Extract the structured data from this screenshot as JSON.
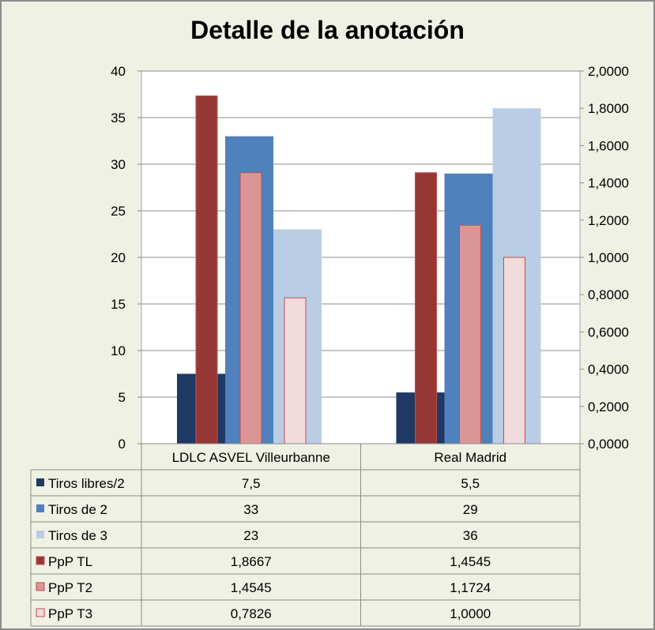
{
  "chart_data": {
    "type": "bar",
    "title": "Detalle de la anotación",
    "categories": [
      "LDLC ASVEL Villeurbanne",
      "Real Madrid"
    ],
    "y_left": {
      "min": 0,
      "max": 40,
      "ticks": [
        "0",
        "5",
        "10",
        "15",
        "20",
        "25",
        "30",
        "35",
        "40"
      ]
    },
    "y_right": {
      "min": 0,
      "max": 2,
      "ticks": [
        "0,0000",
        "0,2000",
        "0,4000",
        "0,6000",
        "0,8000",
        "1,0000",
        "1,2000",
        "1,4000",
        "1,6000",
        "1,8000",
        "2,0000"
      ]
    },
    "grid": true,
    "legend": "data-table",
    "series": [
      {
        "name": "Tiros libres/2",
        "axis": "left",
        "color": "#1f3864",
        "values": [
          7.5,
          5.5
        ],
        "labels": [
          "7,5",
          "5,5"
        ]
      },
      {
        "name": "Tiros de 2",
        "axis": "left",
        "color": "#4f81bd",
        "values": [
          33,
          29
        ],
        "labels": [
          "33",
          "29"
        ]
      },
      {
        "name": "Tiros de 3",
        "axis": "left",
        "color": "#b9cde5",
        "values": [
          23,
          36
        ],
        "labels": [
          "23",
          "36"
        ]
      },
      {
        "name": "PpP TL",
        "axis": "right",
        "color": "#953735",
        "values": [
          1.8667,
          1.4545
        ],
        "labels": [
          "1,8667",
          "1,4545"
        ]
      },
      {
        "name": "PpP T2",
        "axis": "right",
        "color": "#d99694",
        "values": [
          1.4545,
          1.1724
        ],
        "labels": [
          "1,4545",
          "1,1724"
        ]
      },
      {
        "name": "PpP T3",
        "axis": "right",
        "color": "#f2dcdb",
        "values": [
          0.7826,
          1.0
        ],
        "labels": [
          "0,7826",
          "1,0000"
        ]
      }
    ]
  }
}
